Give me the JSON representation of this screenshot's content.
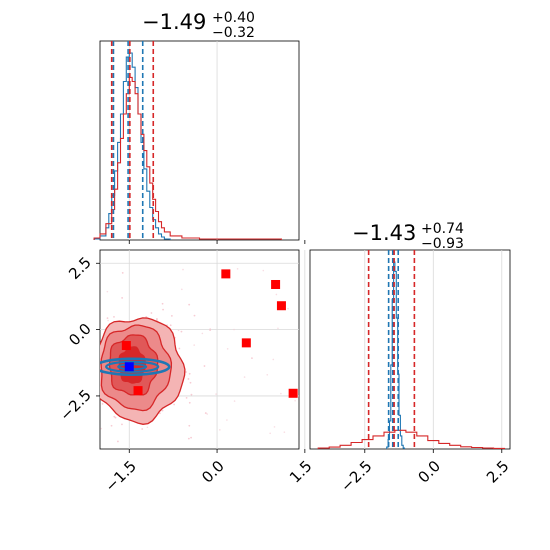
{
  "chart_data": [
    {
      "type": "histogram",
      "panel": "marginal-param-1",
      "title": {
        "main": "−1.49",
        "sup": "+0.40",
        "sub": "−0.32"
      },
      "xlim": [
        -2.0,
        1.4
      ],
      "grid": true,
      "series": [
        {
          "name": "",
          "color": "#1f77b4",
          "x": [
            -2.1,
            -2.0,
            -1.9,
            -1.85,
            -1.8,
            -1.75,
            -1.7,
            -1.65,
            -1.6,
            -1.55,
            -1.5,
            -1.45,
            -1.4,
            -1.35,
            -1.3,
            -1.25,
            -1.2,
            -1.15,
            -1.1,
            -1.05,
            -1.0,
            -0.95,
            -0.9
          ],
          "y": [
            0.005,
            0.02,
            0.06,
            0.13,
            0.22,
            0.34,
            0.48,
            0.62,
            0.78,
            0.9,
            0.92,
            0.85,
            0.75,
            0.62,
            0.48,
            0.35,
            0.24,
            0.16,
            0.1,
            0.06,
            0.03,
            0.015,
            0.005
          ]
        },
        {
          "name": "",
          "color": "#d62728",
          "x": [
            -2.1,
            -2.0,
            -1.9,
            -1.8,
            -1.75,
            -1.7,
            -1.65,
            -1.6,
            -1.55,
            -1.5,
            -1.45,
            -1.4,
            -1.35,
            -1.3,
            -1.25,
            -1.2,
            -1.15,
            -1.1,
            -1.05,
            -1.0,
            -0.95,
            -0.9,
            -0.8,
            -0.6,
            -0.3,
            0.3,
            1.0
          ],
          "y": [
            0.01,
            0.03,
            0.08,
            0.15,
            0.25,
            0.38,
            0.5,
            0.62,
            0.72,
            0.8,
            0.78,
            0.72,
            0.62,
            0.52,
            0.44,
            0.36,
            0.28,
            0.2,
            0.14,
            0.09,
            0.06,
            0.04,
            0.02,
            0.01,
            0.005,
            0.005,
            0.005
          ]
        }
      ],
      "quantile_lines": {
        "blue": [
          -1.77,
          -1.52,
          -1.27
        ],
        "red": [
          -1.8,
          -1.49,
          -1.09
        ]
      }
    },
    {
      "type": "scatter-contour",
      "panel": "joint-param-1-param-2",
      "xlim": [
        -2.0,
        1.4
      ],
      "ylim": [
        -4.5,
        3.0
      ],
      "grid": true,
      "xticks": [
        "−1.5",
        "0.0",
        "1.5"
      ],
      "yticks": [
        "2.5",
        "0.0",
        "−2.5"
      ],
      "red_contour_center": [
        -1.35,
        -1.5
      ],
      "blue_contour_center": [
        -1.45,
        -1.4
      ],
      "blue_marker": {
        "x": -1.5,
        "y": -1.4,
        "color": "#0000ff"
      },
      "red_markers": {
        "color": "#ff0000",
        "x": [
          -2.1,
          -1.55,
          -1.35,
          0.15,
          0.5,
          1.0,
          1.1,
          1.3
        ],
        "y": [
          -0.75,
          -0.6,
          -2.3,
          2.1,
          -0.5,
          1.7,
          0.9,
          -2.4
        ]
      }
    },
    {
      "type": "histogram",
      "panel": "marginal-param-2",
      "title": {
        "main": "−1.43",
        "sup": "+0.74",
        "sub": "−0.93"
      },
      "xlim": [
        -4.5,
        2.8
      ],
      "grid": true,
      "xticks": [
        "−2.5",
        "0.0",
        "2.5"
      ],
      "series": [
        {
          "name": "",
          "color": "#1f77b4",
          "x": [
            -1.7,
            -1.65,
            -1.6,
            -1.55,
            -1.5,
            -1.45,
            -1.4,
            -1.35,
            -1.3,
            -1.25,
            -1.2,
            -1.15,
            -1.1
          ],
          "y": [
            0.01,
            0.05,
            0.15,
            0.45,
            0.8,
            1.0,
            0.95,
            0.7,
            0.4,
            0.18,
            0.07,
            0.02,
            0.005
          ]
        },
        {
          "name": "",
          "color": "#d62728",
          "x": [
            -4.2,
            -3.8,
            -3.4,
            -3.0,
            -2.6,
            -2.2,
            -1.8,
            -1.4,
            -1.0,
            -0.6,
            -0.2,
            0.2,
            0.6,
            1.0,
            1.4,
            1.8,
            2.2
          ],
          "y": [
            0.005,
            0.01,
            0.02,
            0.035,
            0.05,
            0.07,
            0.09,
            0.1,
            0.09,
            0.07,
            0.045,
            0.03,
            0.02,
            0.012,
            0.008,
            0.005,
            0.003
          ]
        }
      ],
      "quantile_lines": {
        "blue": [
          -1.63,
          -1.48,
          -1.28
        ],
        "red": [
          -2.36,
          -1.43,
          -0.69
        ]
      }
    }
  ]
}
